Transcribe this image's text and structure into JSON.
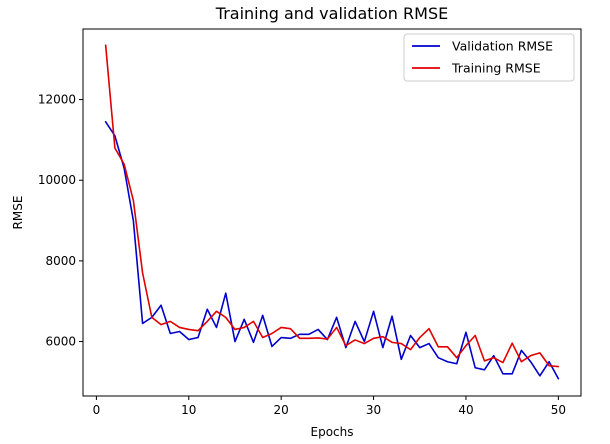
{
  "chart_data": {
    "type": "line",
    "title": "Training and validation RMSE",
    "xlabel": "Epochs",
    "ylabel": "RMSE",
    "xlim": [
      -1.45,
      52.45
    ],
    "ylim": [
      4650,
      13750
    ],
    "xticks": [
      0,
      10,
      20,
      30,
      40,
      50
    ],
    "yticks": [
      6000,
      8000,
      10000,
      12000
    ],
    "grid": false,
    "legend_position": "top-right",
    "x": [
      1,
      2,
      3,
      4,
      5,
      6,
      7,
      8,
      9,
      10,
      11,
      12,
      13,
      14,
      15,
      16,
      17,
      18,
      19,
      20,
      21,
      22,
      23,
      24,
      25,
      26,
      27,
      28,
      29,
      30,
      31,
      32,
      33,
      34,
      35,
      36,
      37,
      38,
      39,
      40,
      41,
      42,
      43,
      44,
      45,
      46,
      47,
      48,
      49,
      50
    ],
    "series": [
      {
        "name": "Validation RMSE",
        "color": "#0000cc",
        "values": [
          11450,
          11100,
          10300,
          9000,
          6450,
          6600,
          6900,
          6200,
          6250,
          6050,
          6100,
          6800,
          6350,
          7200,
          6000,
          6550,
          5980,
          6650,
          5880,
          6100,
          6080,
          6180,
          6180,
          6300,
          6050,
          6600,
          5850,
          6500,
          6000,
          6750,
          5850,
          6630,
          5560,
          6150,
          5850,
          5950,
          5600,
          5500,
          5450,
          6230,
          5350,
          5300,
          5650,
          5200,
          5200,
          5780,
          5500,
          5150,
          5500,
          5080
        ]
      },
      {
        "name": "Training RMSE",
        "color": "#e00000",
        "values": [
          13350,
          10800,
          10400,
          9500,
          7700,
          6600,
          6420,
          6500,
          6350,
          6300,
          6270,
          6500,
          6750,
          6600,
          6300,
          6350,
          6500,
          6100,
          6200,
          6350,
          6320,
          6080,
          6080,
          6090,
          6060,
          6350,
          5900,
          6040,
          5950,
          6080,
          6120,
          5980,
          5950,
          5800,
          6100,
          6320,
          5870,
          5870,
          5600,
          5900,
          6150,
          5520,
          5600,
          5480,
          5960,
          5500,
          5650,
          5720,
          5400,
          5380
        ]
      }
    ]
  }
}
